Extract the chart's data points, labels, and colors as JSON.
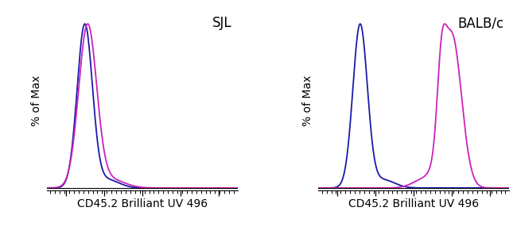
{
  "panel1_label": "SJL",
  "panel2_label": "BALB/c",
  "xlabel": "CD45.2 Brilliant UV 496",
  "ylabel": "% of Max",
  "blue_color": "#1a1aaa",
  "magenta_color": "#cc22bb",
  "background_color": "#ffffff",
  "xlim": [
    0,
    1
  ],
  "ylim": [
    -0.015,
    1.08
  ],
  "label_fontsize": 10,
  "annotation_fontsize": 12,
  "linewidth": 1.3
}
